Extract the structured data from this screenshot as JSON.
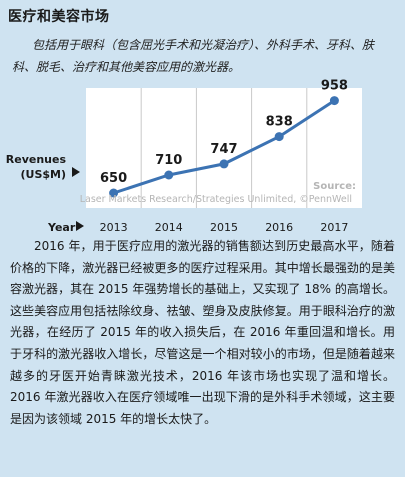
{
  "header": {
    "title": "医疗和美容市场",
    "subtitle": "包括用于眼科（包含屈光手术和光凝治疗）、外科手术、牙科、肤科、脱毛、治疗和其他美容应用的激光器。"
  },
  "chart_data": {
    "type": "line",
    "title": "",
    "xlabel": "Year",
    "ylabel": "Revenues (US$M)",
    "x": [
      "2013",
      "2014",
      "2015",
      "2016",
      "2017"
    ],
    "series": [
      {
        "values": [
          650,
          710,
          747,
          838,
          958
        ]
      }
    ],
    "ylim": [
      600,
      1000
    ],
    "grid": true,
    "line_color": "#3c73b3",
    "plot_background": "#ffffff",
    "source_label": "Source:",
    "source_text": "Laser Markets Research/Strategies Unlimited, ©PennWell"
  },
  "body": {
    "paragraph": "2016 年，用于医疗应用的激光器的销售额达到历史最高水平，随着价格的下降，激光器已经被更多的医疗过程采用。其中增长最强劲的是美容激光器，其在 2015 年强势增长的基础上，又实现了 18% 的高增长。这些美容应用包括祛除纹身、祛皱、塑身及皮肤修复。用于眼科治疗的激光器，在经历了 2015 年的收入损失后，在 2016 年重回温和增长。用于牙科的激光器收入增长，尽管这是一个相对较小的市场，但是随着越来越多的牙医开始青睐激光技术，2016 年该市场也实现了温和增长。2016 年激光器收入在医疗领域唯一出现下滑的是外科手术领域，这主要是因为该领域 2015 年的增长太快了。"
  }
}
